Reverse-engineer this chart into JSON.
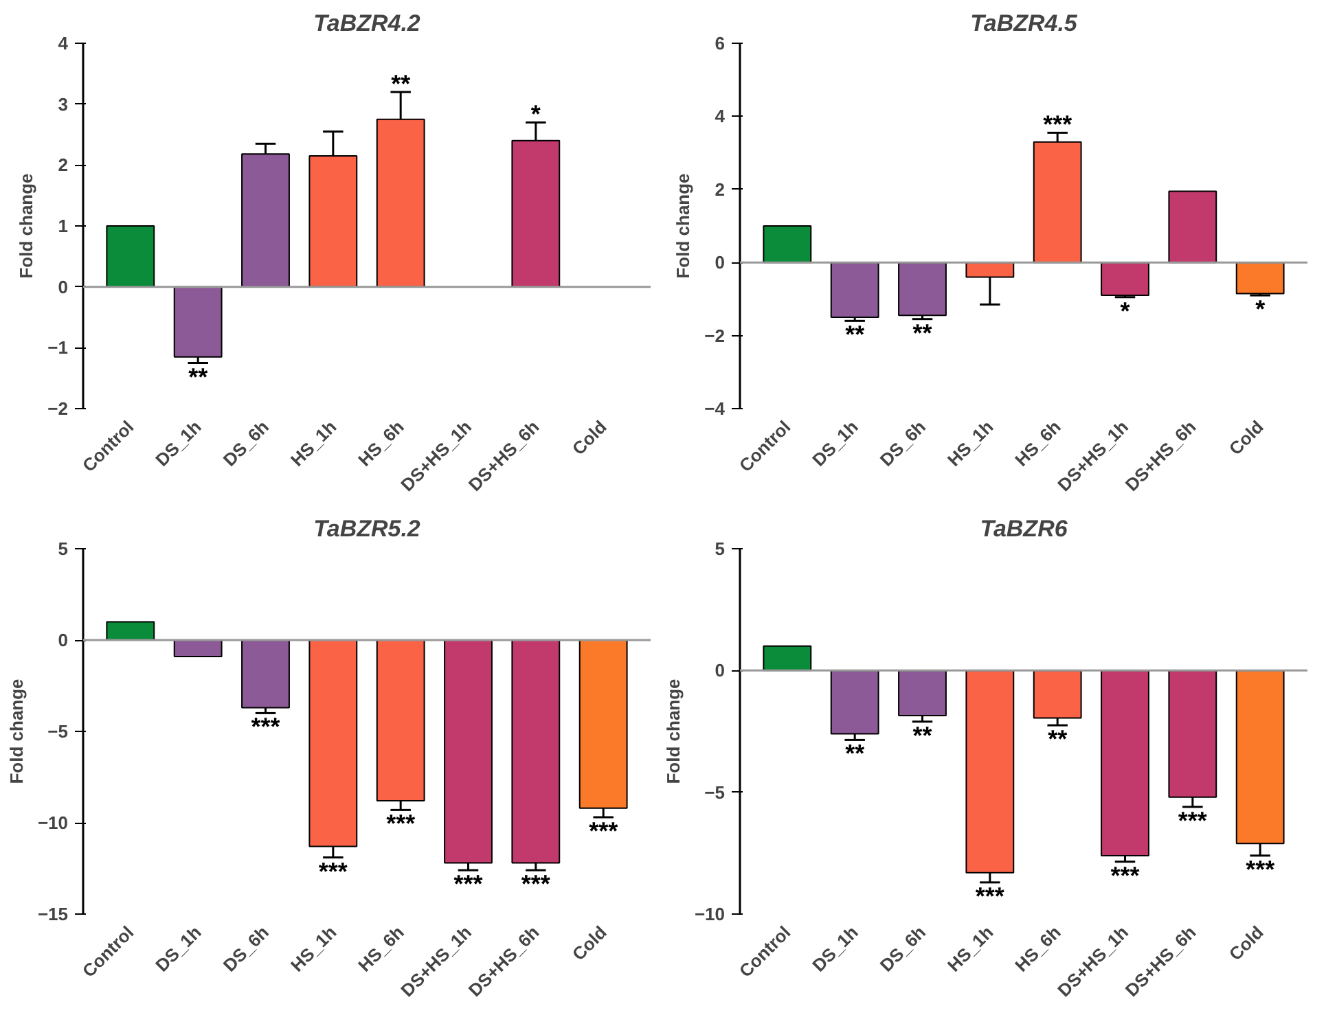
{
  "chart_data": [
    {
      "type": "bar",
      "title": "TaBZR4.2",
      "ylabel": "Fold change",
      "categories": [
        "Control",
        "DS_1h",
        "DS_6h",
        "HS_1h",
        "HS_6h",
        "DS+HS_1h",
        "DS+HS_6h",
        "Cold"
      ],
      "values": [
        1,
        -1.15,
        2.18,
        2.15,
        2.75,
        null,
        2.4,
        null
      ],
      "colors": [
        "#0b8c3b",
        "#8c5a96",
        "#8c5a96",
        "#fb6347",
        "#fb6347",
        "#c23a6c",
        "#c23a6c",
        "#fb7a2a"
      ],
      "errors": [
        null,
        [
          -1.25,
          -1.15
        ],
        [
          2.18,
          2.35
        ],
        [
          2.15,
          2.55
        ],
        [
          2.75,
          3.2
        ],
        null,
        [
          2.4,
          2.7
        ],
        null
      ],
      "ylim": [
        -2,
        4
      ],
      "yticks": [
        -2,
        -1,
        0,
        1,
        2,
        3,
        4
      ],
      "grid": false,
      "ref_lines": [
        {
          "axis": "y",
          "value": 0,
          "color": "#999999"
        }
      ],
      "annotations": [
        {
          "text": "**",
          "x": "DS_1h",
          "y": -1.25
        },
        {
          "text": "**",
          "x": "HS_6h",
          "y": 3.2
        },
        {
          "text": "*",
          "x": "DS+HS_6h",
          "y": 2.7
        }
      ]
    },
    {
      "type": "bar",
      "title": "TaBZR4.5",
      "ylabel": "Fold change",
      "categories": [
        "Control",
        "DS_1h",
        "DS_6h",
        "HS_1h",
        "HS_6h",
        "DS+HS_1h",
        "DS+HS_6h",
        "Cold"
      ],
      "values": [
        1,
        -1.5,
        -1.45,
        -0.4,
        3.3,
        -0.9,
        1.95,
        -0.85
      ],
      "colors": [
        "#0b8c3b",
        "#8c5a96",
        "#8c5a96",
        "#fb6347",
        "#fb6347",
        "#c23a6c",
        "#c23a6c",
        "#fb7a2a"
      ],
      "errors": [
        null,
        [
          -1.6,
          -1.5
        ],
        [
          -1.55,
          -1.45
        ],
        [
          -1.15,
          -0.4
        ],
        [
          3.3,
          3.55
        ],
        [
          -0.95,
          -0.9
        ],
        null,
        [
          -0.9,
          -0.85
        ]
      ],
      "ylim": [
        -4,
        6
      ],
      "yticks": [
        -4,
        -2,
        0,
        2,
        4,
        6
      ],
      "grid": false,
      "ref_lines": [
        {
          "axis": "y",
          "value": 0,
          "color": "#999999"
        }
      ],
      "annotations": [
        {
          "text": "**",
          "x": "DS_1h",
          "y": -1.6
        },
        {
          "text": "**",
          "x": "DS_6h",
          "y": -1.55
        },
        {
          "text": "***",
          "x": "HS_6h",
          "y": 3.55
        },
        {
          "text": "*",
          "x": "DS+HS_1h",
          "y": -0.95
        },
        {
          "text": "*",
          "x": "Cold",
          "y": -0.9
        }
      ]
    },
    {
      "type": "bar",
      "title": "TaBZR5.2",
      "ylabel": "Fold change",
      "categories": [
        "Control",
        "DS_1h",
        "DS_6h",
        "HS_1h",
        "HS_6h",
        "DS+HS_1h",
        "DS+HS_6h",
        "Cold"
      ],
      "values": [
        1,
        -0.9,
        -3.7,
        -11.3,
        -8.8,
        -12.2,
        -12.2,
        -9.2
      ],
      "colors": [
        "#0b8c3b",
        "#8c5a96",
        "#8c5a96",
        "#fb6347",
        "#fb6347",
        "#c23a6c",
        "#c23a6c",
        "#fb7a2a"
      ],
      "errors": [
        null,
        null,
        [
          -4,
          -3.7
        ],
        [
          -11.9,
          -11.3
        ],
        [
          -9.3,
          -8.8
        ],
        [
          -12.6,
          -12.2
        ],
        [
          -12.6,
          -12.2
        ],
        [
          -9.7,
          -9.2
        ]
      ],
      "ylim": [
        -15,
        5
      ],
      "yticks": [
        -15,
        -10,
        -5,
        0,
        5
      ],
      "grid": false,
      "ref_lines": [
        {
          "axis": "y",
          "value": 0,
          "color": "#999999"
        }
      ],
      "annotations": [
        {
          "text": "***",
          "x": "DS_6h",
          "y": -4
        },
        {
          "text": "***",
          "x": "HS_1h",
          "y": -11.9
        },
        {
          "text": "***",
          "x": "HS_6h",
          "y": -9.3
        },
        {
          "text": "***",
          "x": "DS+HS_1h",
          "y": -12.6
        },
        {
          "text": "***",
          "x": "DS+HS_6h",
          "y": -12.6
        },
        {
          "text": "***",
          "x": "Cold",
          "y": -9.7
        }
      ]
    },
    {
      "type": "bar",
      "title": "TaBZR6",
      "ylabel": "Fold change",
      "categories": [
        "Control",
        "DS_1h",
        "DS_6h",
        "HS_1h",
        "HS_6h",
        "DS+HS_1h",
        "DS+HS_6h",
        "Cold"
      ],
      "values": [
        1,
        -2.6,
        -1.85,
        -8.3,
        -1.95,
        -7.6,
        -5.2,
        -7.1
      ],
      "colors": [
        "#0b8c3b",
        "#8c5a96",
        "#8c5a96",
        "#fb6347",
        "#fb6347",
        "#c23a6c",
        "#c23a6c",
        "#fb7a2a"
      ],
      "errors": [
        null,
        [
          -2.85,
          -2.6
        ],
        [
          -2.1,
          -1.85
        ],
        [
          -8.7,
          -8.3
        ],
        [
          -2.25,
          -1.95
        ],
        [
          -7.85,
          -7.6
        ],
        [
          -5.6,
          -5.2
        ],
        [
          -7.6,
          -7.1
        ]
      ],
      "ylim": [
        -10,
        5
      ],
      "yticks": [
        -10,
        -5,
        0,
        5
      ],
      "grid": false,
      "ref_lines": [
        {
          "axis": "y",
          "value": 0,
          "color": "#999999"
        }
      ],
      "annotations": [
        {
          "text": "**",
          "x": "DS_1h",
          "y": -2.85
        },
        {
          "text": "**",
          "x": "DS_6h",
          "y": -2.1
        },
        {
          "text": "***",
          "x": "HS_1h",
          "y": -8.7
        },
        {
          "text": "**",
          "x": "HS_6h",
          "y": -2.25
        },
        {
          "text": "***",
          "x": "DS+HS_1h",
          "y": -7.85
        },
        {
          "text": "***",
          "x": "DS+HS_6h",
          "y": -5.6
        },
        {
          "text": "***",
          "x": "Cold",
          "y": -7.6
        }
      ]
    }
  ]
}
